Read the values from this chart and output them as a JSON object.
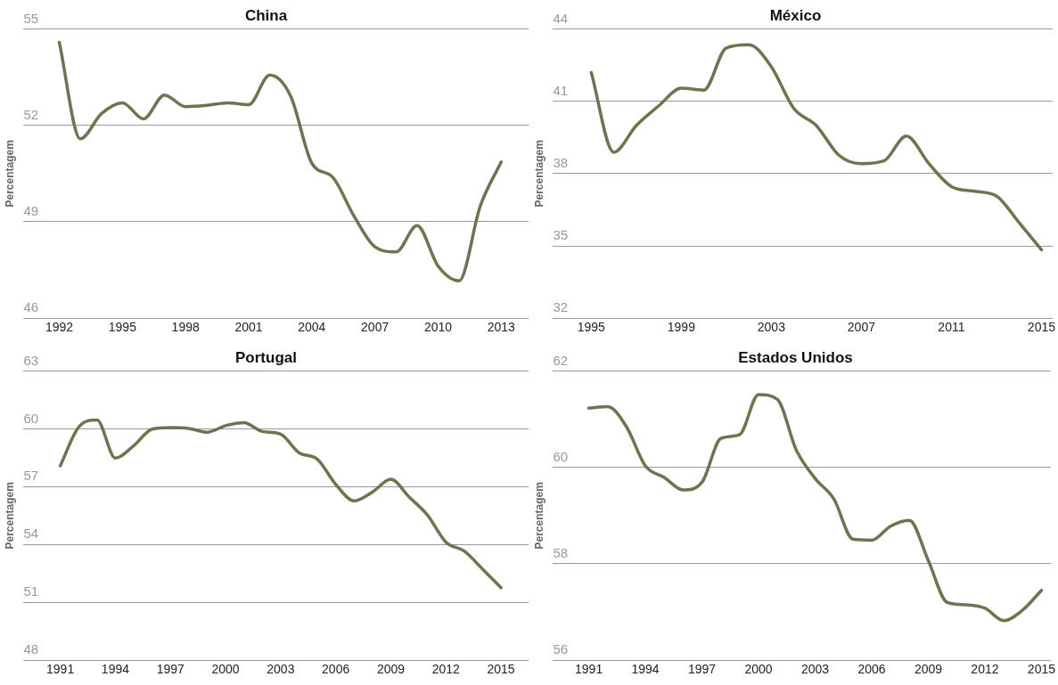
{
  "chart_data": [
    {
      "type": "line",
      "title": "China",
      "ylabel": "Percentagem",
      "x": [
        1992,
        1993,
        1994,
        1995,
        1996,
        1997,
        1998,
        1999,
        2000,
        2001,
        2002,
        2003,
        2004,
        2005,
        2006,
        2007,
        2008,
        2009,
        2010,
        2011,
        2012,
        2013
      ],
      "series": [
        {
          "color": "#6b7550",
          "values": [
            54.58,
            51.58,
            52.36,
            52.7,
            52.2,
            52.94,
            52.58,
            52.62,
            52.7,
            52.64,
            53.56,
            52.9,
            50.82,
            50.38,
            49.18,
            48.22,
            48.06,
            48.88,
            47.62,
            47.16,
            49.48,
            50.86
          ]
        }
      ],
      "xlim": [
        1990.3,
        2014.3
      ],
      "xticks": [
        1992,
        1995,
        1998,
        2001,
        2004,
        2007,
        2010,
        2013
      ],
      "ylim": [
        46,
        55
      ],
      "yticks": [
        46,
        49,
        52,
        55
      ],
      "grid": "y",
      "marker": "none",
      "line_style": "solid"
    },
    {
      "type": "line",
      "title": "México",
      "ylabel": "Percentagem",
      "x": [
        1995,
        1996,
        1997,
        1998,
        1999,
        2000,
        2001,
        2002,
        2003,
        2004,
        2005,
        2006,
        2007,
        2008,
        2009,
        2010,
        2011,
        2012,
        2013,
        2014,
        2015
      ],
      "series": [
        {
          "color": "#6b7550",
          "values": [
            42.19,
            38.88,
            39.99,
            40.81,
            41.54,
            41.46,
            43.21,
            43.34,
            42.43,
            40.7,
            39.99,
            38.76,
            38.41,
            38.52,
            39.55,
            38.41,
            37.46,
            37.27,
            37.07,
            35.97,
            34.84
          ]
        }
      ],
      "xlim": [
        1993.3,
        2015.5
      ],
      "xticks": [
        1995,
        1999,
        2003,
        2007,
        2011,
        2015
      ],
      "ylim": [
        32,
        44
      ],
      "yticks": [
        32,
        35,
        38,
        41,
        44
      ],
      "grid": "y",
      "marker": "none",
      "line_style": "solid"
    },
    {
      "type": "line",
      "title": "Portugal",
      "ylabel": "Percentagem",
      "x": [
        1991,
        1992,
        1993,
        1994,
        1995,
        1996,
        1997,
        1998,
        1999,
        2000,
        2001,
        2002,
        2003,
        2004,
        2005,
        2006,
        2007,
        2008,
        2009,
        2010,
        2011,
        2012,
        2013,
        2014,
        2015
      ],
      "series": [
        {
          "color": "#6b7550",
          "values": [
            58.08,
            60.08,
            60.46,
            58.48,
            59.12,
            59.98,
            60.06,
            60.02,
            59.82,
            60.16,
            60.32,
            59.86,
            59.72,
            58.76,
            58.42,
            57.12,
            56.26,
            56.72,
            57.38,
            56.46,
            55.52,
            54.12,
            53.66,
            52.72,
            51.76
          ]
        }
      ],
      "xlim": [
        1989,
        2016.5
      ],
      "xticks": [
        1991,
        1994,
        1997,
        2000,
        2003,
        2006,
        2009,
        2012,
        2015
      ],
      "ylim": [
        48,
        63
      ],
      "yticks": [
        48,
        51,
        54,
        57,
        60,
        63
      ],
      "grid": "y",
      "marker": "none",
      "line_style": "solid"
    },
    {
      "type": "line",
      "title": "Estados Unidos",
      "ylabel": "Percentagem",
      "x": [
        1991,
        1992,
        1993,
        1994,
        1995,
        1996,
        1997,
        1998,
        1999,
        2000,
        2001,
        2002,
        2003,
        2004,
        2005,
        2006,
        2007,
        2008,
        2009,
        2010,
        2011,
        2012,
        2013,
        2014,
        2015
      ],
      "series": [
        {
          "color": "#6b7550",
          "values": [
            61.23,
            61.26,
            60.84,
            60.03,
            59.79,
            59.53,
            59.69,
            60.6,
            60.68,
            61.51,
            61.41,
            60.36,
            59.77,
            59.34,
            58.51,
            58.49,
            58.78,
            58.9,
            58.07,
            57.2,
            57.15,
            57.08,
            56.82,
            57.04,
            57.45
          ]
        }
      ],
      "xlim": [
        1989.1,
        2015.5
      ],
      "xticks": [
        1991,
        1994,
        1997,
        2000,
        2003,
        2006,
        2009,
        2012,
        2015
      ],
      "ylim": [
        56,
        62
      ],
      "yticks": [
        56,
        58,
        60,
        62
      ],
      "grid": "y",
      "marker": "none",
      "line_style": "solid"
    }
  ]
}
